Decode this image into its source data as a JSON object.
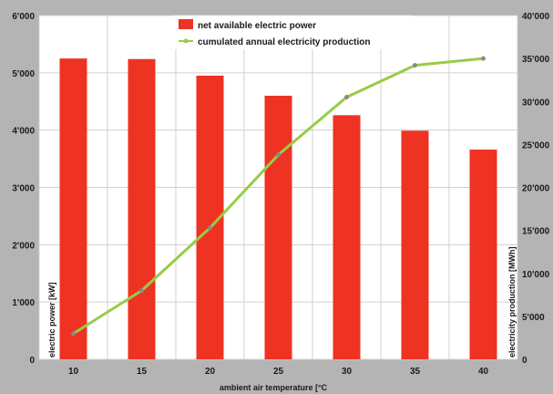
{
  "chart_data": {
    "type": "bar",
    "categories": [
      "10",
      "15",
      "20",
      "25",
      "30",
      "35",
      "40"
    ],
    "xlabel": "ambient air temperature [°C",
    "ylabel_left": "electric power [kW]",
    "ylabel_right": "electricity production [MWh]",
    "ylim_left": [
      0,
      6000
    ],
    "ylim_right": [
      0,
      40000
    ],
    "yticks_left": [
      "0",
      "1'000",
      "2'000",
      "3'000",
      "4'000",
      "5'000",
      "6'000"
    ],
    "yticks_right": [
      "0",
      "5'000",
      "10'000",
      "15'000",
      "20'000",
      "25'000",
      "30'000",
      "35'000",
      "40'000"
    ],
    "grid": true,
    "legend_position": "top-center",
    "series": [
      {
        "name": "net available electric power",
        "type": "bar",
        "axis": "left",
        "color": "#ee3322",
        "values": [
          5250,
          5240,
          4950,
          4600,
          4260,
          3990,
          3660
        ]
      },
      {
        "name": "cumulated annual electricity production",
        "type": "line",
        "axis": "right",
        "color": "#99cc44",
        "marker_color": "#8a8a8a",
        "values": [
          3000,
          8000,
          15300,
          23800,
          30500,
          34200,
          35000
        ]
      }
    ]
  }
}
